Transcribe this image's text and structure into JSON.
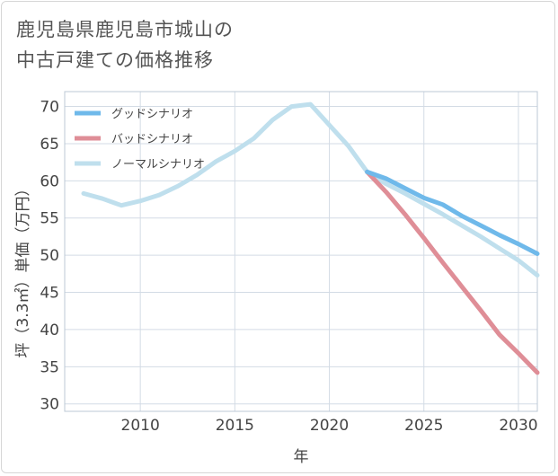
{
  "title_lines": [
    "鹿児島県鹿児島市城山の",
    "中古戸建ての価格推移"
  ],
  "chart_data": {
    "type": "line",
    "title": "鹿児島県鹿児島市城山の中古戸建ての価格推移",
    "xlabel": "年",
    "ylabel": "坪（3.3㎡）単価（万円）",
    "xlim": [
      2006,
      2031
    ],
    "ylim": [
      29,
      72
    ],
    "xticks": [
      2010,
      2015,
      2020,
      2025,
      2030
    ],
    "yticks": [
      30,
      35,
      40,
      45,
      50,
      55,
      60,
      65,
      70
    ],
    "grid": true,
    "legend_position": "top-left",
    "series": [
      {
        "name": "グッドシナリオ",
        "color": "#6fb9ea",
        "x": [
          2022,
          2023,
          2024,
          2025,
          2026,
          2027,
          2028,
          2029,
          2030,
          2031
        ],
        "y": [
          61.2,
          60.3,
          59.0,
          57.7,
          56.8,
          55.3,
          54.0,
          52.7,
          51.5,
          50.2
        ]
      },
      {
        "name": "バッドシナリオ",
        "color": "#df8e97",
        "x": [
          2022,
          2023,
          2024,
          2025,
          2026,
          2027,
          2028,
          2029,
          2030,
          2031
        ],
        "y": [
          61.2,
          58.5,
          55.5,
          52.3,
          49.0,
          45.8,
          42.6,
          39.3,
          36.8,
          34.2
        ]
      },
      {
        "name": "ノーマルシナリオ",
        "color": "#bfdfed",
        "x": [
          2007,
          2008,
          2009,
          2010,
          2011,
          2012,
          2013,
          2014,
          2015,
          2016,
          2017,
          2018,
          2019,
          2020,
          2021,
          2022,
          2023,
          2024,
          2025,
          2026,
          2027,
          2028,
          2029,
          2030,
          2031
        ],
        "y": [
          58.3,
          57.6,
          56.7,
          57.3,
          58.1,
          59.3,
          60.8,
          62.6,
          64.0,
          65.7,
          68.2,
          70.0,
          70.3,
          67.5,
          64.7,
          61.2,
          59.6,
          58.3,
          56.9,
          55.5,
          54.0,
          52.5,
          50.9,
          49.3,
          47.3
        ]
      }
    ]
  }
}
